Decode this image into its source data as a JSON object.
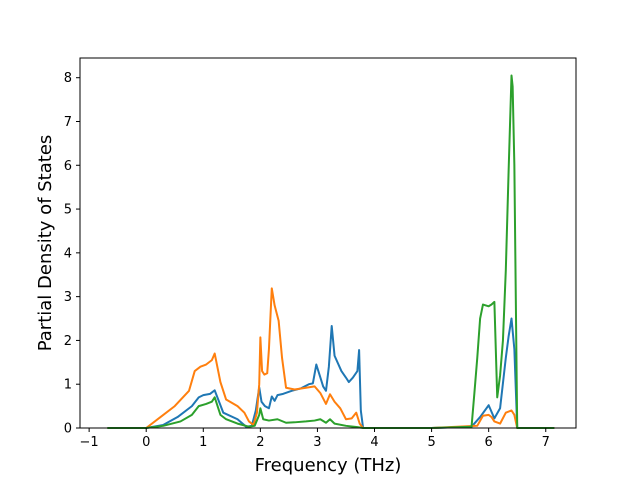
{
  "chart_data": {
    "type": "line",
    "title": "",
    "xlabel": "Frequency (THz)",
    "ylabel": "Partial Density of States",
    "xlim": [
      -1.16,
      7.53
    ],
    "ylim": [
      0,
      8.45
    ],
    "xticks": [
      -1,
      0,
      1,
      2,
      3,
      4,
      5,
      6,
      7
    ],
    "yticks": [
      0,
      1,
      2,
      3,
      4,
      5,
      6,
      7,
      8
    ],
    "grid": false,
    "legend": "none",
    "series": [
      {
        "color": "#1f77b4",
        "x": [
          -0.68,
          0.0,
          0.3,
          0.55,
          0.8,
          0.92,
          1.0,
          1.12,
          1.2,
          1.35,
          1.6,
          1.75,
          1.85,
          1.92,
          1.98,
          2.02,
          2.08,
          2.15,
          2.2,
          2.25,
          2.3,
          2.4,
          2.55,
          2.7,
          2.85,
          2.92,
          2.98,
          3.04,
          3.1,
          3.15,
          3.2,
          3.25,
          3.3,
          3.42,
          3.5,
          3.55,
          3.62,
          3.7,
          3.73,
          3.76,
          3.8,
          4.0,
          5.0,
          5.7,
          5.85,
          6.0,
          6.1,
          6.2,
          6.3,
          6.35,
          6.4,
          6.45,
          6.5,
          7.15
        ],
        "y": [
          0,
          0,
          0.07,
          0.25,
          0.5,
          0.7,
          0.75,
          0.78,
          0.86,
          0.35,
          0.2,
          0.03,
          0.05,
          0.4,
          0.93,
          0.6,
          0.5,
          0.45,
          0.72,
          0.62,
          0.75,
          0.78,
          0.85,
          0.9,
          1.0,
          1.02,
          1.45,
          1.2,
          0.95,
          0.85,
          1.4,
          2.33,
          1.65,
          1.3,
          1.15,
          1.05,
          1.15,
          1.3,
          1.78,
          0.4,
          0,
          0,
          0,
          0.03,
          0.25,
          0.52,
          0.22,
          0.45,
          1.6,
          2.1,
          2.5,
          1.8,
          0,
          0
        ]
      },
      {
        "color": "#ff7f0e",
        "x": [
          -0.68,
          0.0,
          0.25,
          0.5,
          0.75,
          0.85,
          0.95,
          1.05,
          1.15,
          1.2,
          1.3,
          1.4,
          1.6,
          1.72,
          1.8,
          1.88,
          1.94,
          1.98,
          2.0,
          2.03,
          2.07,
          2.12,
          2.15,
          2.2,
          2.25,
          2.32,
          2.38,
          2.45,
          2.6,
          2.8,
          2.95,
          3.05,
          3.15,
          3.22,
          3.3,
          3.4,
          3.5,
          3.6,
          3.68,
          3.74,
          3.8,
          4.0,
          5.0,
          5.8,
          5.9,
          6.0,
          6.05,
          6.1,
          6.2,
          6.3,
          6.4,
          6.45,
          6.5,
          7.15
        ],
        "y": [
          0,
          0,
          0.25,
          0.5,
          0.85,
          1.3,
          1.4,
          1.45,
          1.55,
          1.7,
          1.05,
          0.65,
          0.5,
          0.35,
          0.15,
          0.07,
          0.35,
          1.0,
          2.07,
          1.3,
          1.22,
          1.25,
          1.8,
          3.19,
          2.8,
          2.45,
          1.6,
          0.92,
          0.88,
          0.92,
          0.95,
          0.8,
          0.55,
          0.77,
          0.6,
          0.45,
          0.2,
          0.22,
          0.35,
          0.1,
          0,
          0,
          0,
          0.05,
          0.28,
          0.3,
          0.25,
          0.15,
          0.1,
          0.35,
          0.4,
          0.3,
          0,
          0
        ]
      },
      {
        "color": "#2ca02c",
        "x": [
          -0.68,
          0.0,
          0.3,
          0.6,
          0.8,
          0.92,
          1.05,
          1.15,
          1.2,
          1.3,
          1.4,
          1.6,
          1.8,
          1.9,
          1.98,
          2.0,
          2.05,
          2.15,
          2.3,
          2.45,
          2.6,
          2.8,
          2.95,
          3.05,
          3.15,
          3.22,
          3.3,
          3.5,
          3.7,
          3.8,
          4.0,
          5.0,
          5.7,
          5.75,
          5.8,
          5.85,
          5.9,
          6.0,
          6.05,
          6.1,
          6.15,
          6.2,
          6.25,
          6.3,
          6.35,
          6.4,
          6.42,
          6.45,
          6.5,
          7.15
        ],
        "y": [
          0,
          0,
          0.05,
          0.15,
          0.3,
          0.5,
          0.55,
          0.6,
          0.7,
          0.3,
          0.2,
          0.1,
          0.03,
          0.05,
          0.3,
          0.45,
          0.2,
          0.17,
          0.2,
          0.12,
          0.13,
          0.15,
          0.17,
          0.2,
          0.12,
          0.2,
          0.1,
          0.05,
          0.02,
          0,
          0,
          0,
          0.03,
          0.8,
          1.6,
          2.5,
          2.82,
          2.78,
          2.82,
          2.88,
          0.7,
          1.2,
          2.0,
          3.6,
          5.9,
          8.05,
          7.8,
          6.0,
          0,
          0
        ]
      }
    ]
  }
}
